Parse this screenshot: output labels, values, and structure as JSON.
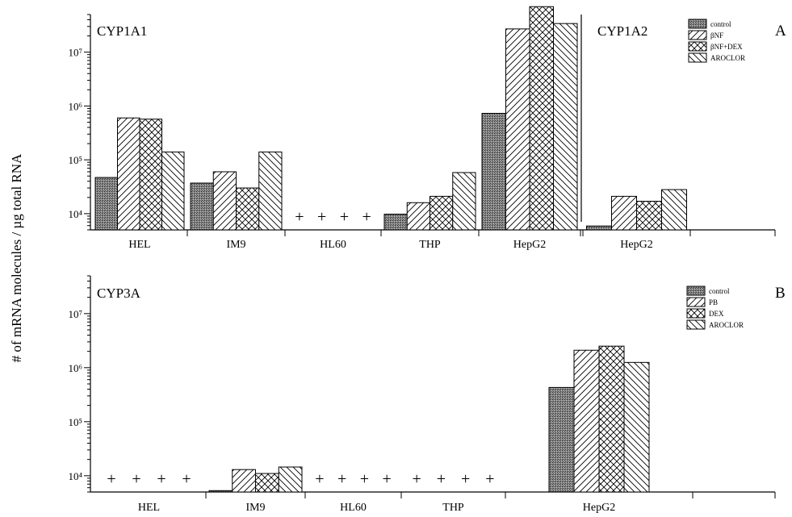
{
  "figure": {
    "ylabel": "# of mRNA molecules / µg total RNA"
  },
  "chart_data": [
    {
      "panel": "A",
      "type": "bar",
      "title": "CYP1A1",
      "secondary_title": "CYP1A2",
      "yscale": "log",
      "ylim": [
        5000,
        50000000
      ],
      "ytick_labels": [
        "10⁴",
        "10⁵",
        "10⁶",
        "10⁷"
      ],
      "categories": [
        "HEL",
        "IM9",
        "HL60",
        "THP",
        "HepG2",
        "HepG2"
      ],
      "series": [
        {
          "name": "control",
          "values": [
            47000,
            37000,
            null,
            9800,
            730000,
            5900
          ]
        },
        {
          "name": "βNF",
          "values": [
            600000,
            60000,
            null,
            16000,
            27000000,
            21000
          ]
        },
        {
          "name": "βNF+DEX",
          "values": [
            570000,
            30000,
            null,
            21000,
            70000000,
            17000
          ]
        },
        {
          "name": "AROCLOR",
          "values": [
            140000,
            140000,
            null,
            58000,
            34000000,
            28000
          ]
        }
      ],
      "not_detected_marker": "+",
      "legend_position": "top-right"
    },
    {
      "panel": "B",
      "type": "bar",
      "title": "CYP3A",
      "yscale": "log",
      "ylim": [
        5000,
        50000000
      ],
      "ytick_labels": [
        "10⁴",
        "10⁵",
        "10⁶",
        "10⁷"
      ],
      "categories": [
        "HEL",
        "IM9",
        "HL60",
        "THP",
        "HepG2"
      ],
      "series": [
        {
          "name": "control",
          "values": [
            null,
            5300,
            null,
            null,
            430000
          ]
        },
        {
          "name": "PB",
          "values": [
            null,
            13000,
            null,
            null,
            2100000
          ]
        },
        {
          "name": "DEX",
          "values": [
            null,
            11000,
            null,
            null,
            2500000
          ]
        },
        {
          "name": "AROCLOR",
          "values": [
            null,
            14500,
            null,
            null,
            1250000
          ]
        }
      ],
      "not_detected_marker": "+",
      "legend_position": "top-right"
    }
  ]
}
